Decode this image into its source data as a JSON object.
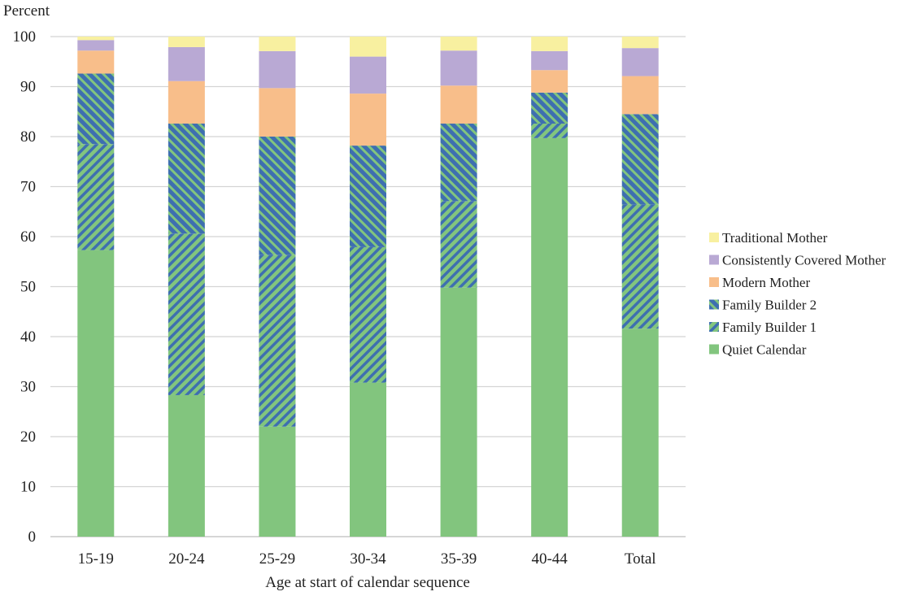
{
  "chart_data": {
    "type": "bar",
    "stacked": true,
    "ylabel": "Percent",
    "xlabel": "Age at start of calendar sequence",
    "ylim": [
      0,
      100
    ],
    "yticks": [
      0,
      10,
      20,
      30,
      40,
      50,
      60,
      70,
      80,
      90,
      100
    ],
    "grid": true,
    "legend_position": "right",
    "categories": [
      "15-19",
      "20-24",
      "25-29",
      "30-34",
      "35-39",
      "40-44",
      "Total"
    ],
    "series": [
      {
        "name": "Quiet Calendar",
        "color": "#82c57e",
        "pattern": "solid",
        "values": [
          57.3,
          28.3,
          22.0,
          30.8,
          49.8,
          79.7,
          41.6
        ]
      },
      {
        "name": "Family Builder 1",
        "color": "#82c57e",
        "pattern": "hatch-green-blue",
        "values": [
          21.2,
          32.3,
          34.3,
          27.1,
          17.3,
          2.9,
          24.8
        ]
      },
      {
        "name": "Family Builder 2",
        "color": "#3e6fb0",
        "pattern": "hatch-blue-green",
        "values": [
          14.1,
          22.0,
          23.7,
          20.3,
          15.5,
          6.2,
          18.1
        ]
      },
      {
        "name": "Modern Mother",
        "color": "#f8be8a",
        "pattern": "solid",
        "values": [
          4.6,
          8.5,
          9.7,
          10.4,
          7.6,
          4.5,
          7.6
        ]
      },
      {
        "name": "Consistently Covered Mother",
        "color": "#b9a9d4",
        "pattern": "solid",
        "values": [
          2.1,
          6.8,
          7.4,
          7.4,
          7.0,
          3.8,
          5.6
        ]
      },
      {
        "name": "Traditional Mother",
        "color": "#f8f0a0",
        "pattern": "solid",
        "values": [
          0.7,
          2.1,
          2.9,
          4.0,
          2.8,
          2.9,
          2.3
        ]
      }
    ],
    "legend_order": [
      "Traditional Mother",
      "Consistently Covered Mother",
      "Modern Mother",
      "Family Builder 2",
      "Family Builder 1",
      "Quiet Calendar"
    ]
  }
}
